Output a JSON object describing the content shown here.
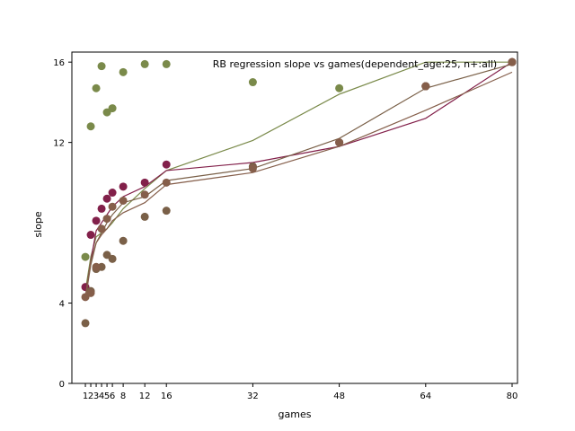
{
  "chart_data": {
    "type": "scatter",
    "title": "RB regression slope vs games(dependent_age:25, n+:all)",
    "xlabel": "games",
    "ylabel": "slope",
    "xlim": [
      -1.5,
      81
    ],
    "ylim": [
      0,
      16.5
    ],
    "x_ticks": [
      1,
      2,
      3,
      4,
      5,
      6,
      8,
      12,
      16,
      32,
      48,
      64,
      80
    ],
    "y_ticks": [
      0,
      4,
      12,
      16
    ],
    "grid": false,
    "legend": "none",
    "series": [
      {
        "color": "#7a8a4a",
        "points": [
          [
            1,
            6.3
          ],
          [
            2,
            12.8
          ],
          [
            3,
            14.7
          ],
          [
            4,
            15.8
          ],
          [
            5,
            13.5
          ],
          [
            6,
            13.7
          ],
          [
            8,
            15.5
          ],
          [
            12,
            15.9
          ],
          [
            16,
            15.9
          ],
          [
            32,
            15.0
          ],
          [
            48,
            14.7
          ],
          [
            64,
            14.8
          ],
          [
            80,
            16.0
          ]
        ],
        "line": [
          [
            1,
            4.6
          ],
          [
            2,
            6.3
          ],
          [
            3,
            7.3
          ],
          [
            4,
            7.5
          ],
          [
            5,
            7.7
          ],
          [
            6,
            8.0
          ],
          [
            8,
            8.7
          ],
          [
            12,
            9.7
          ],
          [
            16,
            10.6
          ],
          [
            32,
            12.1
          ],
          [
            48,
            14.4
          ],
          [
            64,
            16.0
          ],
          [
            80,
            16.0
          ]
        ]
      },
      {
        "color": "#82204a",
        "points": [
          [
            1,
            4.8
          ],
          [
            2,
            7.4
          ],
          [
            3,
            8.1
          ],
          [
            4,
            8.7
          ],
          [
            5,
            9.2
          ],
          [
            6,
            9.5
          ],
          [
            8,
            9.8
          ],
          [
            12,
            10.0
          ],
          [
            16,
            10.9
          ],
          [
            32,
            10.8
          ],
          [
            48,
            12.0
          ],
          [
            64,
            14.8
          ],
          [
            80,
            16.0
          ]
        ],
        "line": [
          [
            1,
            4.3
          ],
          [
            2,
            6.1
          ],
          [
            3,
            7.6
          ],
          [
            4,
            8.0
          ],
          [
            5,
            8.4
          ],
          [
            6,
            8.8
          ],
          [
            8,
            9.3
          ],
          [
            12,
            9.8
          ],
          [
            16,
            10.6
          ],
          [
            32,
            11.0
          ],
          [
            48,
            11.8
          ],
          [
            64,
            13.2
          ],
          [
            80,
            16.0
          ]
        ]
      },
      {
        "color": "#7a6048",
        "points": [
          [
            1,
            3.0
          ],
          [
            2,
            4.6
          ],
          [
            3,
            5.7
          ],
          [
            4,
            5.8
          ],
          [
            5,
            6.4
          ],
          [
            6,
            6.2
          ],
          [
            8,
            7.1
          ],
          [
            12,
            8.3
          ],
          [
            16,
            8.6
          ],
          [
            32,
            10.8
          ],
          [
            48,
            12.0
          ],
          [
            64,
            14.8
          ],
          [
            80,
            16.0
          ]
        ],
        "line": [
          [
            1,
            4.2
          ],
          [
            2,
            5.9
          ],
          [
            3,
            7.0
          ],
          [
            4,
            7.5
          ],
          [
            5,
            8.0
          ],
          [
            6,
            8.4
          ],
          [
            8,
            9.0
          ],
          [
            12,
            9.3
          ],
          [
            16,
            10.1
          ],
          [
            32,
            10.7
          ],
          [
            48,
            12.2
          ],
          [
            64,
            14.7
          ],
          [
            80,
            15.9
          ]
        ]
      },
      {
        "color": "#855e4a",
        "points": [
          [
            1,
            4.3
          ],
          [
            2,
            4.5
          ],
          [
            3,
            5.8
          ],
          [
            4,
            7.7
          ],
          [
            5,
            8.2
          ],
          [
            6,
            8.8
          ],
          [
            8,
            9.1
          ],
          [
            12,
            9.4
          ],
          [
            16,
            10.0
          ],
          [
            32,
            10.7
          ],
          [
            48,
            12.0
          ],
          [
            64,
            14.8
          ],
          [
            80,
            16.0
          ]
        ],
        "line": [
          [
            1,
            4.3
          ],
          [
            2,
            6.1
          ],
          [
            3,
            7.0
          ],
          [
            4,
            7.4
          ],
          [
            5,
            7.7
          ],
          [
            6,
            8.1
          ],
          [
            8,
            8.5
          ],
          [
            12,
            9.0
          ],
          [
            16,
            9.9
          ],
          [
            32,
            10.5
          ],
          [
            48,
            11.8
          ],
          [
            64,
            13.6
          ],
          [
            80,
            15.5
          ]
        ]
      }
    ]
  }
}
